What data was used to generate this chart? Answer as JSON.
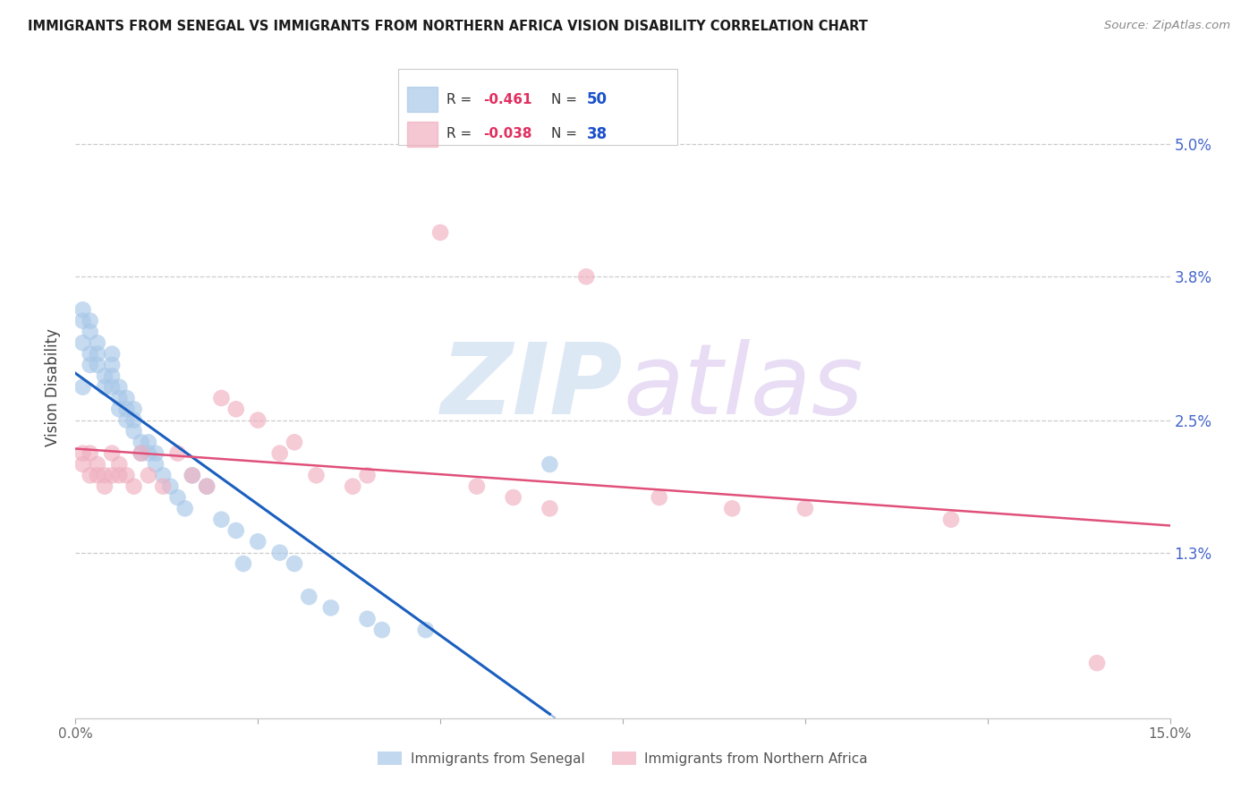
{
  "title": "IMMIGRANTS FROM SENEGAL VS IMMIGRANTS FROM NORTHERN AFRICA VISION DISABILITY CORRELATION CHART",
  "source": "Source: ZipAtlas.com",
  "ylabel": "Vision Disability",
  "ytick_labels": [
    "5.0%",
    "3.8%",
    "2.5%",
    "1.3%"
  ],
  "ytick_values": [
    0.05,
    0.038,
    0.025,
    0.013
  ],
  "xlim": [
    0.0,
    0.15
  ],
  "ylim": [
    -0.002,
    0.058
  ],
  "legend_bottom": [
    "Immigrants from Senegal",
    "Immigrants from Northern Africa"
  ],
  "senegal_color": "#a8c8e8",
  "north_africa_color": "#f0b0c0",
  "trend_senegal_color": "#1a5fbf",
  "trend_north_africa_color": "#e0507a",
  "watermark_zip": "ZIP",
  "watermark_atlas": "atlas",
  "r_senegal": "-0.461",
  "n_senegal": "50",
  "r_north_africa": "-0.038",
  "n_north_africa": "38",
  "senegal_x": [
    0.001,
    0.001,
    0.001,
    0.001,
    0.002,
    0.002,
    0.002,
    0.002,
    0.003,
    0.003,
    0.003,
    0.004,
    0.004,
    0.005,
    0.005,
    0.005,
    0.005,
    0.006,
    0.006,
    0.006,
    0.007,
    0.007,
    0.007,
    0.008,
    0.008,
    0.008,
    0.009,
    0.009,
    0.01,
    0.01,
    0.011,
    0.011,
    0.012,
    0.013,
    0.014,
    0.015,
    0.016,
    0.018,
    0.02,
    0.022,
    0.023,
    0.025,
    0.028,
    0.03,
    0.032,
    0.035,
    0.04,
    0.042,
    0.048,
    0.065
  ],
  "senegal_y": [
    0.034,
    0.035,
    0.032,
    0.028,
    0.034,
    0.033,
    0.031,
    0.03,
    0.032,
    0.031,
    0.03,
    0.029,
    0.028,
    0.031,
    0.03,
    0.029,
    0.028,
    0.028,
    0.027,
    0.026,
    0.027,
    0.026,
    0.025,
    0.026,
    0.025,
    0.024,
    0.023,
    0.022,
    0.023,
    0.022,
    0.022,
    0.021,
    0.02,
    0.019,
    0.018,
    0.017,
    0.02,
    0.019,
    0.016,
    0.015,
    0.012,
    0.014,
    0.013,
    0.012,
    0.009,
    0.008,
    0.007,
    0.006,
    0.006,
    0.021
  ],
  "north_africa_x": [
    0.001,
    0.001,
    0.002,
    0.002,
    0.003,
    0.003,
    0.004,
    0.004,
    0.005,
    0.005,
    0.006,
    0.006,
    0.007,
    0.008,
    0.009,
    0.01,
    0.012,
    0.014,
    0.016,
    0.018,
    0.02,
    0.022,
    0.025,
    0.028,
    0.03,
    0.033,
    0.038,
    0.04,
    0.05,
    0.055,
    0.06,
    0.065,
    0.07,
    0.08,
    0.09,
    0.1,
    0.12,
    0.14
  ],
  "north_africa_y": [
    0.022,
    0.021,
    0.022,
    0.02,
    0.021,
    0.02,
    0.02,
    0.019,
    0.022,
    0.02,
    0.021,
    0.02,
    0.02,
    0.019,
    0.022,
    0.02,
    0.019,
    0.022,
    0.02,
    0.019,
    0.027,
    0.026,
    0.025,
    0.022,
    0.023,
    0.02,
    0.019,
    0.02,
    0.042,
    0.019,
    0.018,
    0.017,
    0.038,
    0.018,
    0.017,
    0.017,
    0.016,
    0.003
  ]
}
